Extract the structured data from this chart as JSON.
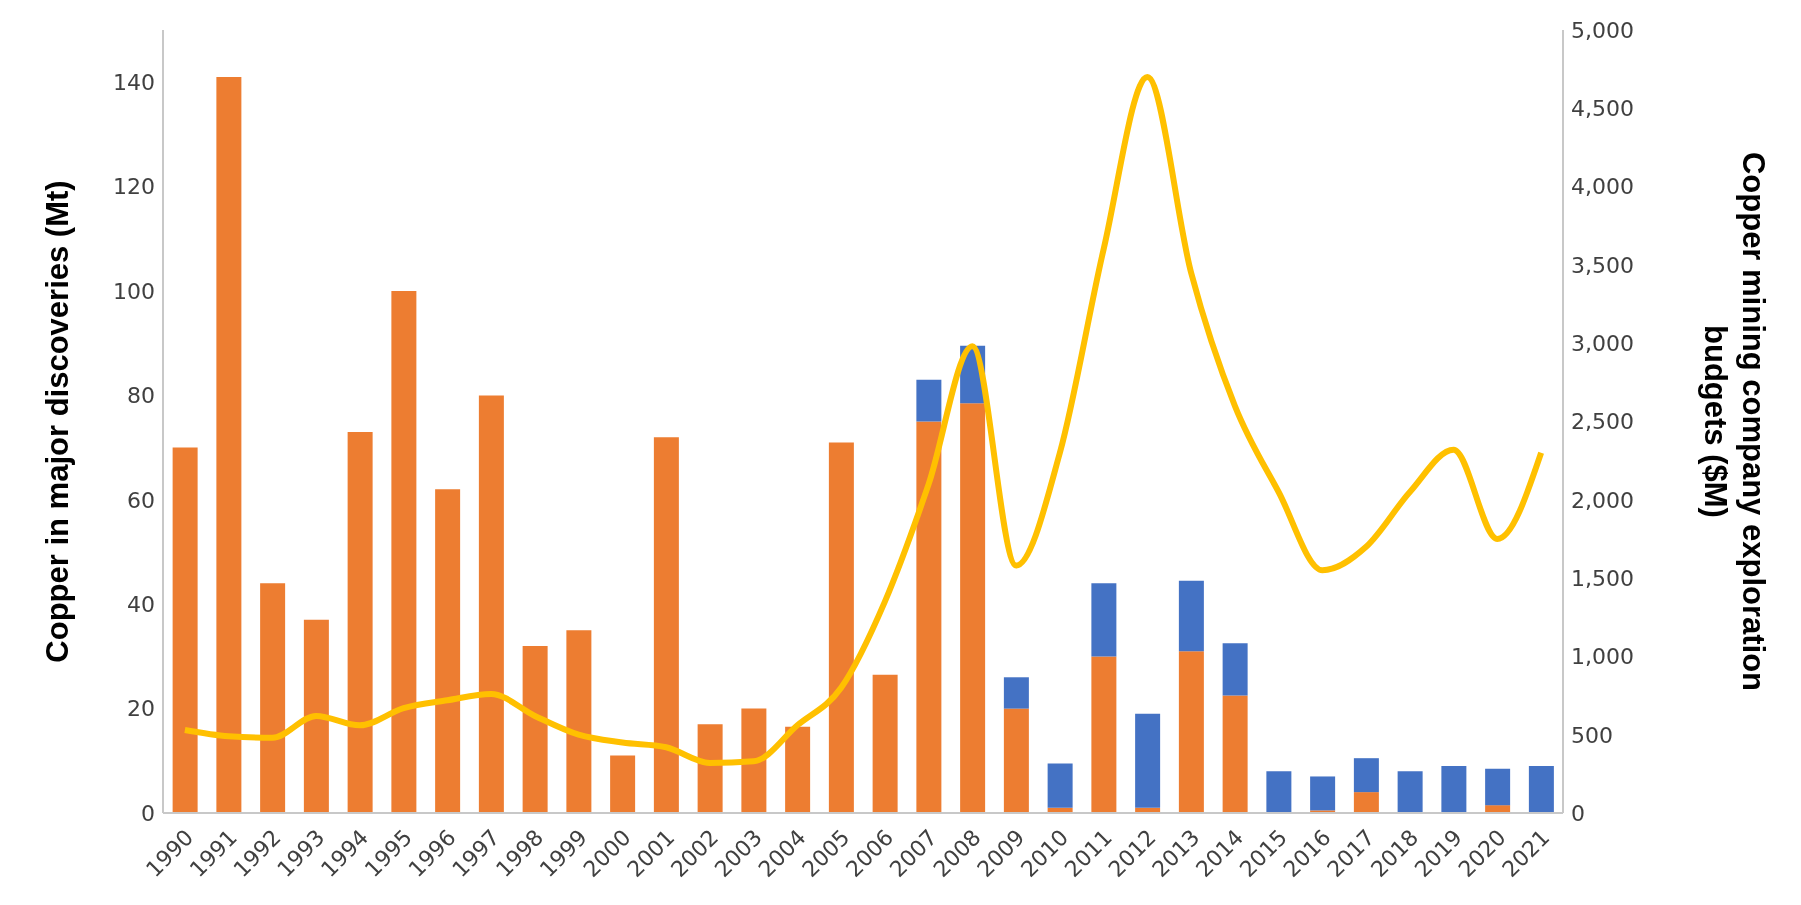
{
  "chart_data": {
    "type": "bar",
    "stacked": true,
    "ylabel": "Copper in major discoveries (Mt)",
    "y2label": "Copper mining company exploration budgets ($M)",
    "categories": [
      "1990",
      "1991",
      "1992",
      "1993",
      "1994",
      "1995",
      "1996",
      "1997",
      "1998",
      "1999",
      "2000",
      "2001",
      "2002",
      "2003",
      "2004",
      "2005",
      "2006",
      "2007",
      "2008",
      "2009",
      "2010",
      "2011",
      "2012",
      "2013",
      "2014",
      "2015",
      "2016",
      "2017",
      "2018",
      "2019",
      "2020",
      "2021"
    ],
    "series": [
      {
        "color": "#ed7d31",
        "values": [
          70,
          141,
          44,
          37,
          73,
          100,
          62,
          80,
          32,
          35,
          11,
          72,
          17,
          20,
          16.5,
          71,
          26.5,
          75,
          78.5,
          20,
          1,
          30,
          1,
          31,
          22.5,
          0,
          0.5,
          4,
          0,
          0,
          1.5,
          0
        ]
      },
      {
        "color": "#4472c4",
        "values": [
          0,
          0,
          0,
          0,
          0,
          0,
          0,
          0,
          0,
          0,
          0,
          0,
          0,
          0,
          0,
          0,
          0,
          8,
          11,
          6,
          8.5,
          14,
          18,
          13.5,
          10,
          8,
          6.5,
          6.5,
          8,
          9,
          7,
          9
        ]
      },
      {
        "type": "line",
        "axis": "y2",
        "color": "#ffc000",
        "values": [
          530,
          490,
          480,
          620,
          560,
          670,
          720,
          760,
          620,
          500,
          450,
          420,
          320,
          330,
          560,
          800,
          1350,
          2100,
          2980,
          1580,
          2300,
          3600,
          4700,
          3450,
          2600,
          2050,
          1550,
          1700,
          2050,
          2320,
          1750,
          2300
        ]
      }
    ],
    "ylim": [
      0,
      150
    ],
    "yticks": [
      0,
      20,
      40,
      60,
      80,
      100,
      120,
      140
    ],
    "y2lim": [
      0,
      5000
    ],
    "y2ticks": [
      0,
      500,
      {
        "value": 1000,
        "label": "1,000"
      },
      {
        "value": 1500,
        "label": "1,500"
      },
      {
        "value": 2000,
        "label": "2,000"
      },
      {
        "value": 2500,
        "label": "2,500"
      },
      {
        "value": 3000,
        "label": "3,000"
      },
      {
        "value": 3500,
        "label": "3,500"
      },
      {
        "value": 4000,
        "label": "4,000"
      },
      {
        "value": 4500,
        "label": "4,500"
      },
      {
        "value": 5000,
        "label": "5,000"
      }
    ],
    "grid": false,
    "legend": false,
    "marker": "none",
    "line_style": "solid"
  }
}
